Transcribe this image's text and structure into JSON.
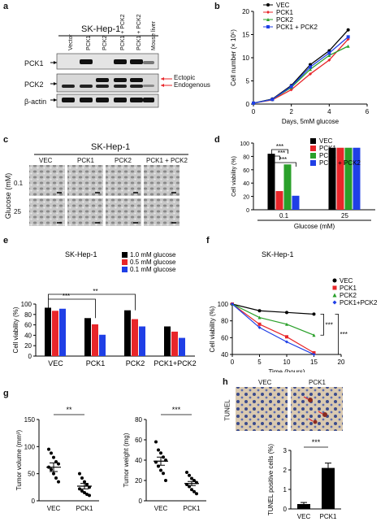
{
  "panels": {
    "a": {
      "label": "a",
      "title": "SK-Hep-1",
      "lanes": [
        "Vector",
        "PCK1",
        "PCK2",
        "PCK1 + PCK2",
        "PCK1 + PCK2",
        "Mouse liver"
      ],
      "rows": [
        "PCK1",
        "PCK2",
        "β-actin"
      ],
      "annotations": [
        "Ectopic",
        "Endogenous"
      ]
    },
    "c": {
      "label": "c",
      "title": "SK-Hep-1",
      "columns": [
        "VEC",
        "PCK1",
        "PCK2",
        "PCK1 + PCK2"
      ],
      "rows": [
        "0.1",
        "25"
      ],
      "ylabel": "Glucose (mM)"
    },
    "h": {
      "label": "h",
      "images": [
        "VEC",
        "PCK1"
      ],
      "side_label": "TUNEL"
    }
  },
  "chart_data": [
    {
      "id": "b",
      "type": "line",
      "xlabel": "Days, 5mM glucose",
      "ylabel": "Cell number (× 10⁵)",
      "xlim": [
        0,
        6
      ],
      "ylim": [
        0,
        20
      ],
      "xticks": [
        0,
        2,
        4,
        6
      ],
      "yticks": [
        0,
        5,
        10,
        15,
        20
      ],
      "x": [
        0,
        1,
        2,
        3,
        4,
        5
      ],
      "series": [
        {
          "name": "VEC",
          "color": "#000000",
          "marker": "circle",
          "values": [
            0.2,
            1.1,
            4.0,
            8.5,
            11.5,
            16.0
          ]
        },
        {
          "name": "PCK1",
          "color": "#e8262a",
          "marker": "diamond",
          "values": [
            0.2,
            0.9,
            3.1,
            6.5,
            9.5,
            14.0
          ]
        },
        {
          "name": "PCK2",
          "color": "#2aa02a",
          "marker": "triangle",
          "values": [
            0.2,
            1.0,
            3.6,
            7.5,
            10.5,
            12.5
          ]
        },
        {
          "name": "PCK1 + PCK2",
          "color": "#1f3fe6",
          "marker": "square",
          "values": [
            0.2,
            1.0,
            3.8,
            8.0,
            11.0,
            14.5
          ]
        }
      ]
    },
    {
      "id": "d",
      "type": "bar",
      "ylabel": "Cell viability (%)",
      "xlabel": "Glucose (mM)",
      "categories": [
        "0.1",
        "25"
      ],
      "ylim": [
        0,
        100
      ],
      "yticks": [
        0,
        20,
        40,
        60,
        80,
        100
      ],
      "series": [
        {
          "name": "VEC",
          "color": "#000000",
          "values": [
            84,
            93
          ]
        },
        {
          "name": "PCK1",
          "color": "#e8262a",
          "values": [
            28,
            93
          ]
        },
        {
          "name": "PCK2",
          "color": "#2aa02a",
          "values": [
            68,
            93
          ]
        },
        {
          "name": "PCK1 + PCK2",
          "color": "#1f3fe6",
          "values": [
            21,
            93
          ]
        }
      ],
      "annotations": [
        "***",
        "***",
        "***"
      ]
    },
    {
      "id": "e",
      "type": "bar",
      "title": "SK-Hep-1",
      "ylabel": "Cell viability (%)",
      "categories": [
        "VEC",
        "PCK1",
        "PCK2",
        "PCK1+PCK2"
      ],
      "ylim": [
        0,
        100
      ],
      "yticks": [
        0,
        20,
        40,
        60,
        80,
        100
      ],
      "series": [
        {
          "name": "1.0 mM glucose",
          "color": "#000000",
          "values": [
            93,
            73,
            88,
            57
          ]
        },
        {
          "name": "0.5 mM glucose",
          "color": "#e8262a",
          "values": [
            87,
            61,
            71,
            47
          ]
        },
        {
          "name": "0.1 mM glucose",
          "color": "#1f3fe6",
          "values": [
            91,
            41,
            57,
            35
          ]
        }
      ],
      "annotations": [
        "***",
        "**"
      ]
    },
    {
      "id": "f",
      "type": "line",
      "title": "SK-Hep-1",
      "xlabel": "Time (hours)",
      "ylabel": "Cell viability (%)",
      "xlim": [
        0,
        20
      ],
      "ylim": [
        40,
        100
      ],
      "xticks": [
        0,
        5,
        10,
        15,
        20
      ],
      "yticks": [
        40,
        60,
        80,
        100
      ],
      "x": [
        0,
        5,
        10,
        15
      ],
      "series": [
        {
          "name": "VEC",
          "color": "#000000",
          "marker": "circle",
          "values": [
            100,
            92,
            90,
            88
          ]
        },
        {
          "name": "PCK1",
          "color": "#e8262a",
          "marker": "square",
          "values": [
            100,
            76,
            61,
            42
          ]
        },
        {
          "name": "PCK2",
          "color": "#2aa02a",
          "marker": "triangle",
          "values": [
            100,
            84,
            76,
            63
          ]
        },
        {
          "name": "PCK1+PCK2",
          "color": "#1f3fe6",
          "marker": "diamond",
          "values": [
            100,
            72,
            55,
            40
          ]
        }
      ],
      "annotations": [
        "***",
        "***"
      ]
    },
    {
      "id": "g1",
      "type": "scatter",
      "ylabel": "Tumor volume (mm³)",
      "categories": [
        "VEC",
        "PCK1"
      ],
      "ylim": [
        0,
        150
      ],
      "yticks": [
        0,
        50,
        100,
        150
      ],
      "groups": [
        {
          "name": "VEC",
          "values": [
            95,
            88,
            80,
            72,
            68,
            62,
            58,
            50,
            42,
            35
          ],
          "mean": 62,
          "sem": 8
        },
        {
          "name": "PCK1",
          "values": [
            50,
            42,
            35,
            30,
            25,
            22,
            18,
            15,
            12,
            10
          ],
          "mean": 27,
          "sem": 5
        }
      ],
      "annotations": [
        "**"
      ]
    },
    {
      "id": "g2",
      "type": "scatter",
      "ylabel": "Tumor weight (mg)",
      "categories": [
        "VEC",
        "PCK1"
      ],
      "ylim": [
        0,
        80
      ],
      "yticks": [
        0,
        20,
        40,
        60,
        80
      ],
      "groups": [
        {
          "name": "VEC",
          "values": [
            58,
            50,
            47,
            43,
            40,
            38,
            34,
            30,
            27,
            20
          ],
          "mean": 39,
          "sem": 4
        },
        {
          "name": "PCK1",
          "values": [
            28,
            25,
            22,
            20,
            18,
            16,
            14,
            11,
            9,
            7
          ],
          "mean": 17,
          "sem": 2
        }
      ],
      "annotations": [
        "***"
      ]
    },
    {
      "id": "h",
      "type": "bar",
      "ylabel": "TUNEL positive cells (%)",
      "categories": [
        "VEC",
        "PCK1"
      ],
      "ylim": [
        0,
        3
      ],
      "yticks": [
        0,
        1,
        2,
        3
      ],
      "values": [
        0.25,
        2.1
      ],
      "errors": [
        0.08,
        0.25
      ],
      "color": "#000000",
      "annotations": [
        "***"
      ]
    }
  ]
}
